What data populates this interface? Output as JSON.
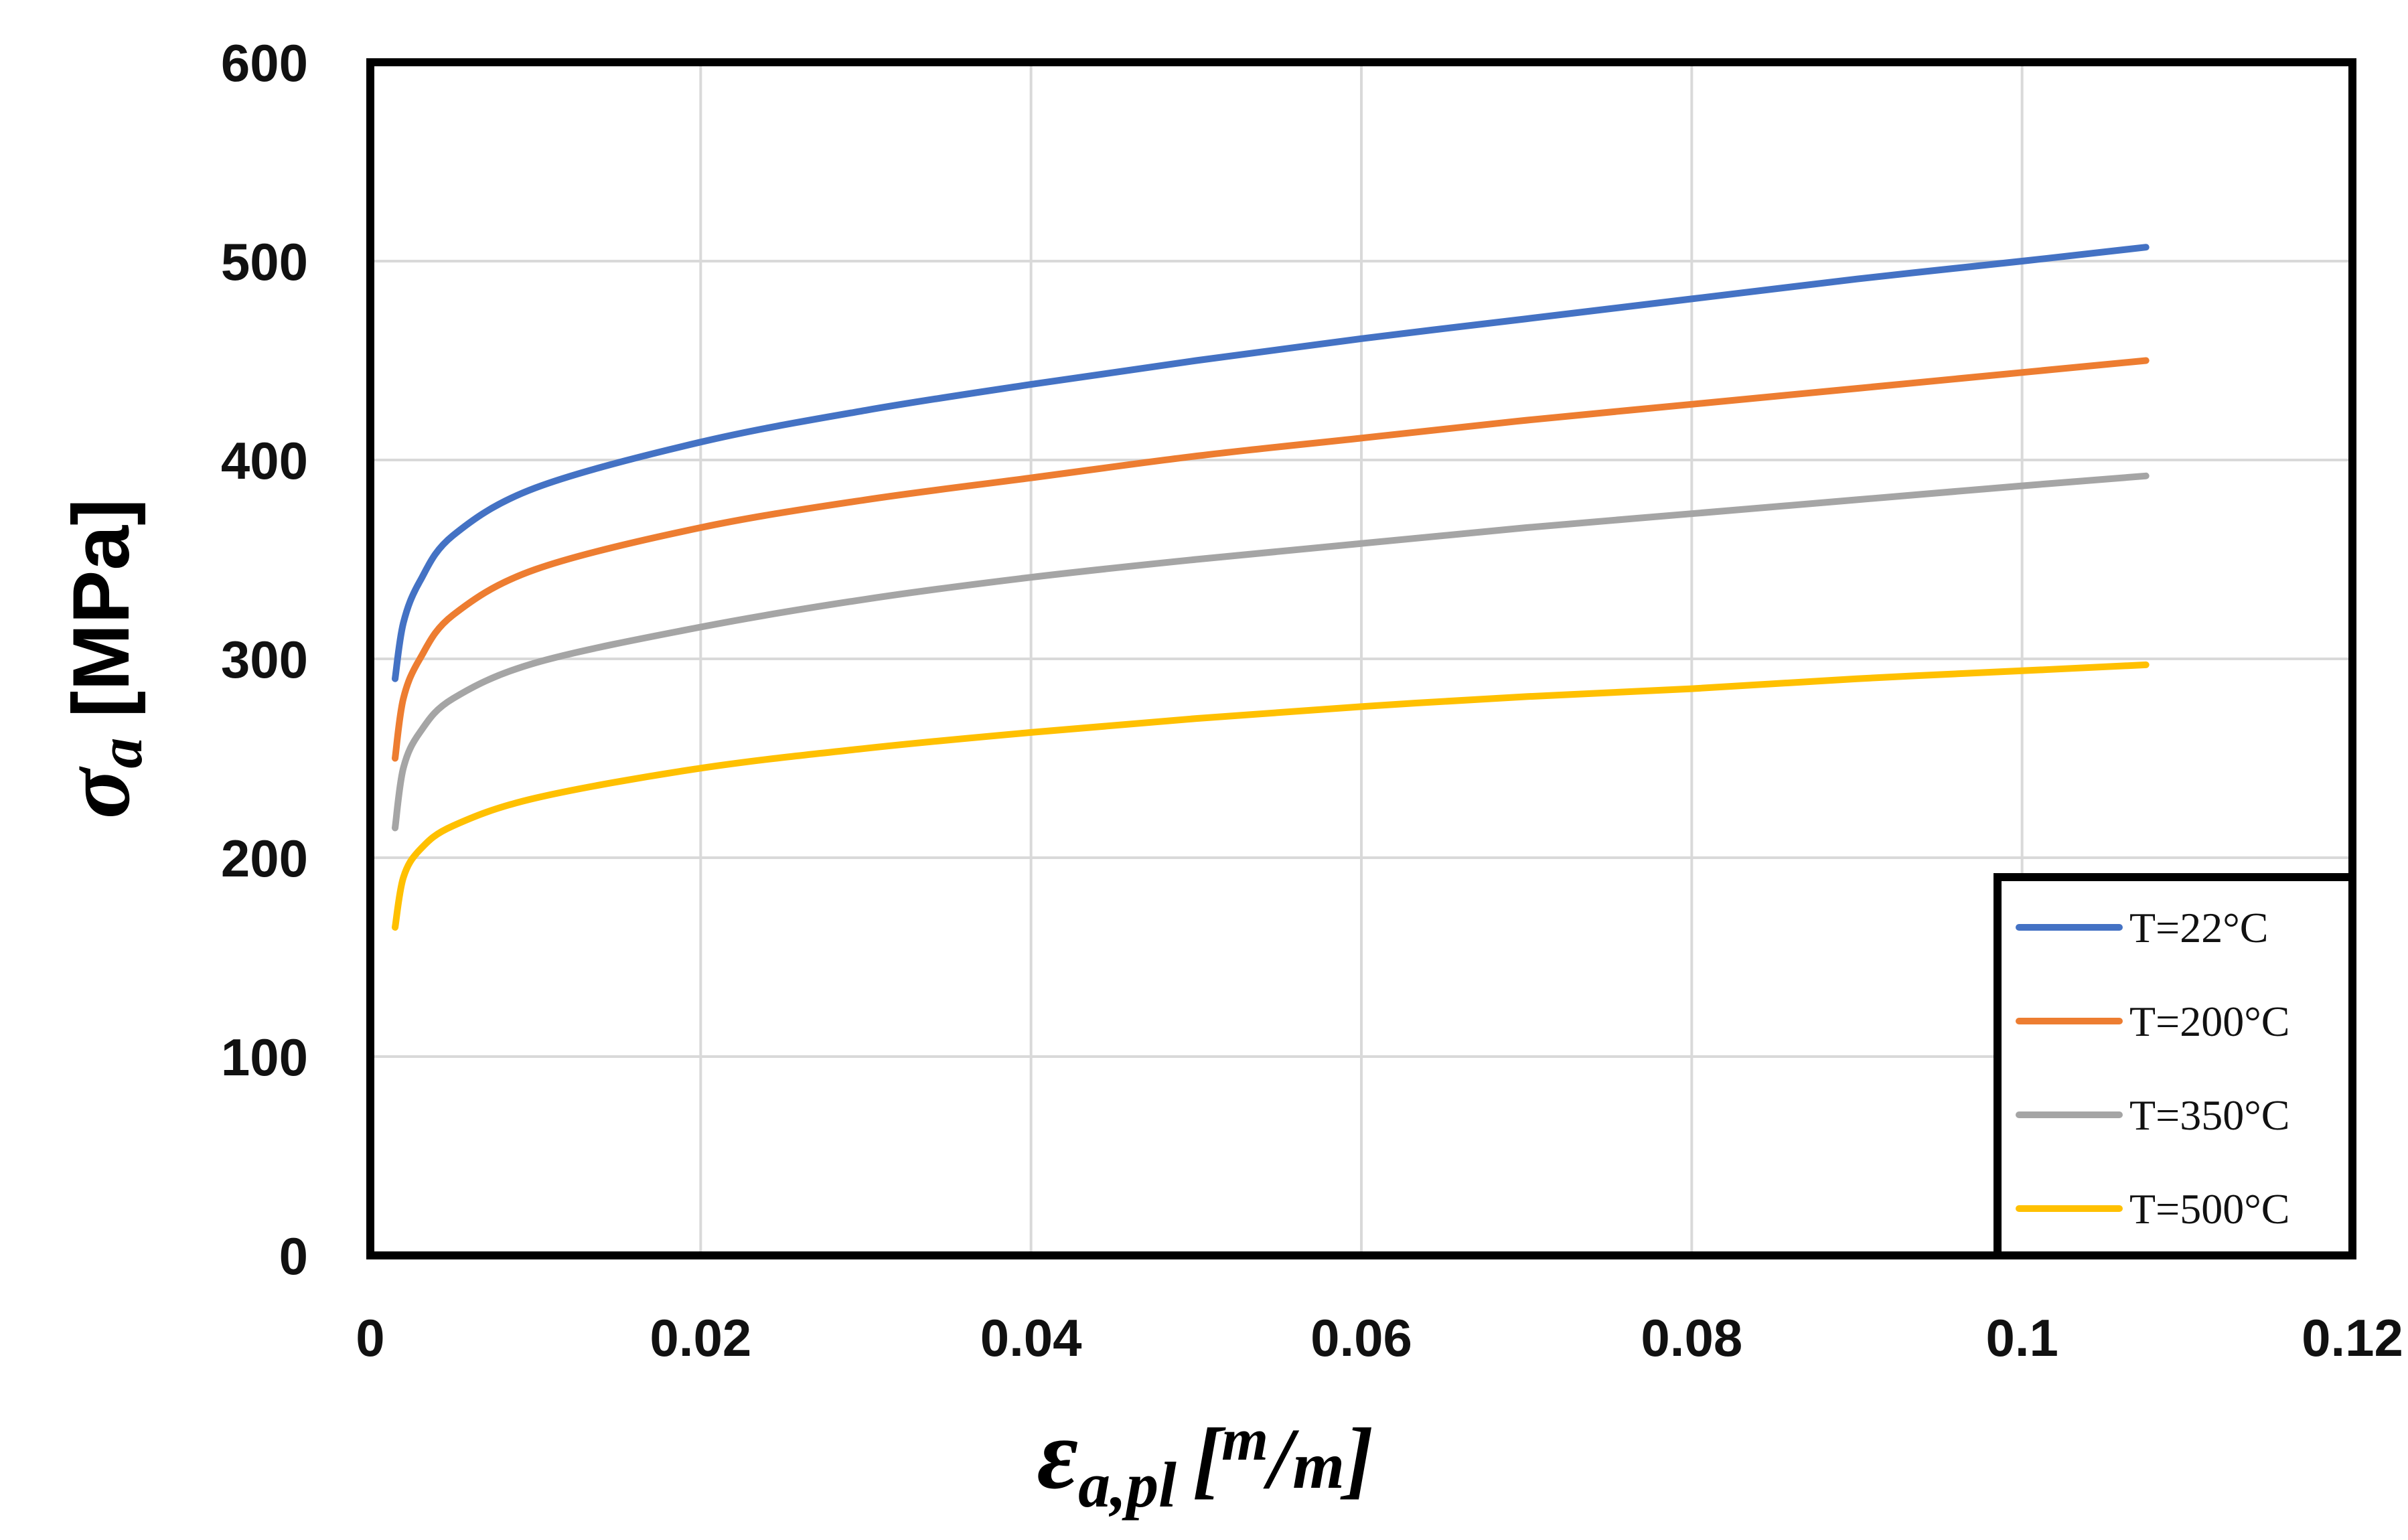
{
  "chart_data": {
    "type": "line",
    "title": "",
    "xlabel": {
      "symbol": "ε",
      "subscript": "a,pl",
      "unit_open": "[",
      "unit_num": "m",
      "unit_slash": "/",
      "unit_den": "m",
      "unit_close": "]"
    },
    "ylabel": {
      "symbol": "σ",
      "subscript": "a",
      "unit": "[MPa]"
    },
    "xlim": [
      0,
      0.12
    ],
    "ylim": [
      0,
      600
    ],
    "x_ticks": [
      0,
      0.02,
      0.04,
      0.06,
      0.08,
      0.1,
      0.12
    ],
    "x_tick_labels": [
      "0",
      "0.02",
      "0.04",
      "0.06",
      "0.08",
      "0.1",
      "0.12"
    ],
    "y_ticks": [
      0,
      100,
      200,
      300,
      400,
      500,
      600
    ],
    "y_tick_labels": [
      "0",
      "100",
      "200",
      "300",
      "400",
      "500",
      "600"
    ],
    "grid": true,
    "legend_position": "bottom-right",
    "series": [
      {
        "name": "T=22°C",
        "color": "#4472C4",
        "x": [
          0.0015,
          0.002,
          0.003,
          0.005,
          0.01,
          0.02,
          0.03,
          0.04,
          0.05,
          0.06,
          0.07,
          0.08,
          0.09,
          0.1,
          0.1075
        ],
        "y": [
          290,
          318,
          339,
          362,
          386,
          409,
          425,
          438,
          450,
          461,
          471,
          481,
          491,
          500,
          507
        ]
      },
      {
        "name": "T=200°C",
        "color": "#ED7D31",
        "x": [
          0.0015,
          0.002,
          0.003,
          0.005,
          0.01,
          0.02,
          0.03,
          0.04,
          0.05,
          0.06,
          0.07,
          0.08,
          0.09,
          0.1,
          0.1075
        ],
        "y": [
          250,
          280,
          300,
          322,
          345,
          366,
          380,
          391,
          402,
          411,
          420,
          428,
          436,
          444,
          450
        ]
      },
      {
        "name": "T=350°C",
        "color": "#A5A5A5",
        "x": [
          0.0015,
          0.002,
          0.003,
          0.005,
          0.01,
          0.02,
          0.03,
          0.04,
          0.05,
          0.06,
          0.07,
          0.08,
          0.09,
          0.1,
          0.1075
        ],
        "y": [
          215,
          245,
          263,
          280,
          298,
          316,
          330,
          341,
          350,
          358,
          366,
          373,
          380,
          387,
          392
        ]
      },
      {
        "name": "T=500°C",
        "color": "#FFC000",
        "x": [
          0.0015,
          0.002,
          0.003,
          0.005,
          0.01,
          0.02,
          0.03,
          0.04,
          0.05,
          0.06,
          0.07,
          0.08,
          0.09,
          0.1,
          0.1075
        ],
        "y": [
          165,
          190,
          204,
          216,
          230,
          245,
          255,
          263,
          270,
          276,
          281,
          285,
          290,
          294,
          297
        ]
      }
    ]
  }
}
